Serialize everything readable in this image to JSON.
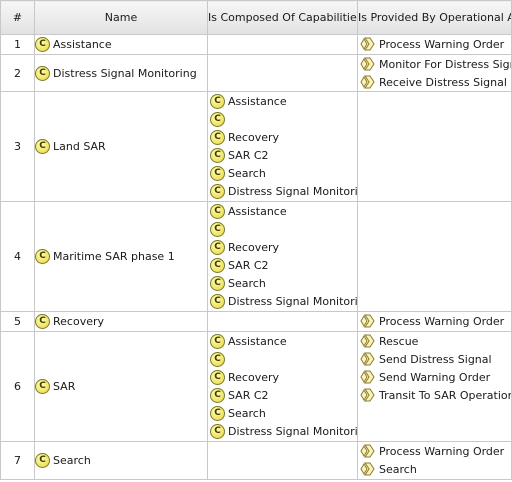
{
  "columns": {
    "num": "#",
    "name": "Name",
    "capabilities": "Is Composed Of Capabilities",
    "activities": "Is Provided By Operational Activity"
  },
  "icons": {
    "capability": "capability-icon",
    "capability_glyph": "C",
    "activity": "operational-activity-icon"
  },
  "rows": [
    {
      "num": "1",
      "name": "Assistance",
      "capabilities": [],
      "activities": [
        "Process Warning Order"
      ]
    },
    {
      "num": "2",
      "name": "Distress Signal Monitoring",
      "capabilities": [],
      "activities": [
        "Monitor For Distress Signal",
        "Receive Distress Signal"
      ]
    },
    {
      "num": "3",
      "name": "Land SAR",
      "capabilities": [
        "Assistance",
        "",
        "Recovery",
        "SAR C2",
        "Search",
        "Distress Signal Monitoring"
      ],
      "activities": []
    },
    {
      "num": "4",
      "name": "Maritime SAR phase 1",
      "capabilities": [
        "Assistance",
        "",
        "Recovery",
        "SAR C2",
        "Search",
        "Distress Signal Monitoring"
      ],
      "activities": []
    },
    {
      "num": "5",
      "name": "Recovery",
      "capabilities": [],
      "activities": [
        "Process Warning Order"
      ]
    },
    {
      "num": "6",
      "name": "SAR",
      "capabilities": [
        "Assistance",
        "",
        "Recovery",
        "SAR C2",
        "Search",
        "Distress Signal Monitoring"
      ],
      "activities": [
        "Rescue",
        "Send Distress Signal",
        "Send Warning Order",
        "Transit To SAR Operation"
      ]
    },
    {
      "num": "7",
      "name": "Search",
      "capabilities": [],
      "activities": [
        "Process Warning Order",
        "Search"
      ]
    }
  ]
}
